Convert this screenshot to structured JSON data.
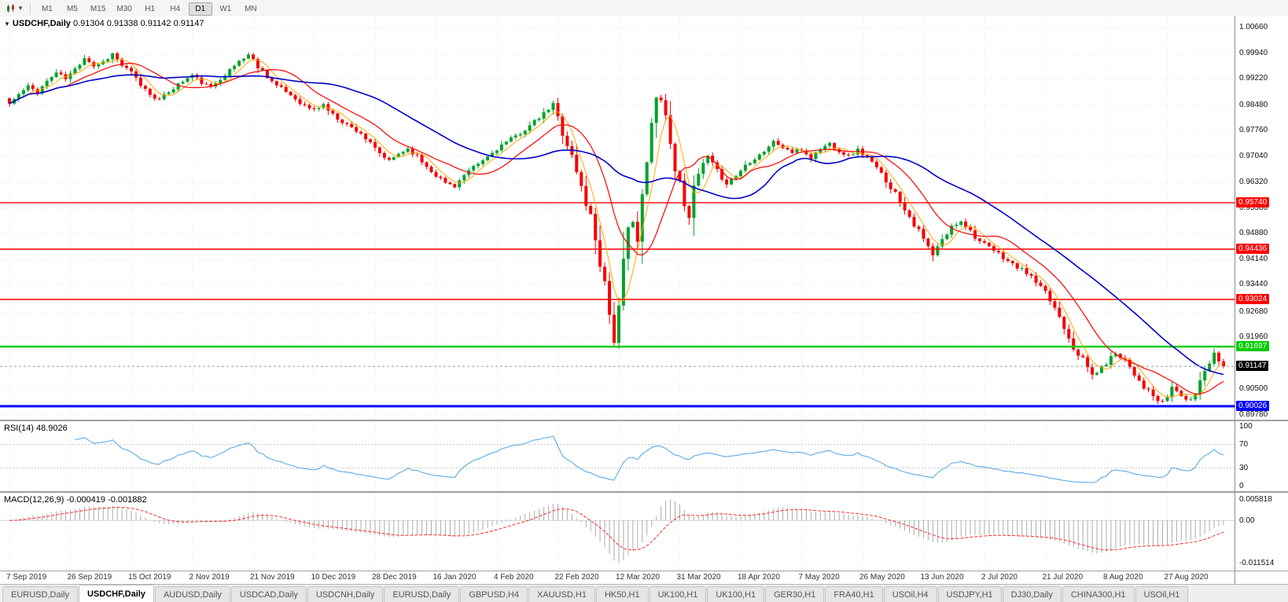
{
  "toolbar": {
    "timeframes": [
      "M1",
      "M5",
      "M15",
      "M30",
      "H1",
      "H4",
      "D1",
      "W1",
      "MN"
    ],
    "active": "D1"
  },
  "chart": {
    "title": "USDCHF,Daily",
    "ohlc": "0.91304 0.91338 0.91142 0.91147"
  },
  "rsi": {
    "title": "RSI(14)",
    "value": "48.9026"
  },
  "macd": {
    "title": "MACD(12,26,9)",
    "values": "-0.000419 -0.001882",
    "range_min": -0.011514,
    "range_max": 0.005818
  },
  "price_axis": {
    "labels": [
      "1.00660",
      "0.99940",
      "0.99220",
      "0.98480",
      "0.97760",
      "0.97040",
      "0.96320",
      "0.95580",
      "0.94880",
      "0.94140",
      "0.93440",
      "0.92680",
      "0.91960",
      "0.90500",
      "0.89780"
    ]
  },
  "chart_data": {
    "type": "candlestick",
    "symbol": "USDCHF",
    "timeframe": "Daily",
    "title": "USDCHF,Daily",
    "total_days": 260,
    "days_per_label": 13,
    "last_close": 0.91147,
    "x_labels": [
      "7 Sep 2019",
      "26 Sep 2019",
      "15 Oct 2019",
      "2 Nov 2019",
      "21 Nov 2019",
      "10 Dec 2019",
      "28 Dec 2019",
      "16 Jan 2020",
      "4 Feb 2020",
      "22 Feb 2020",
      "12 Mar 2020",
      "31 Mar 2020",
      "18 Apr 2020",
      "7 May 2020",
      "26 May 2020",
      "13 Jun 2020",
      "2 Jul 2020",
      "21 Jul 2020",
      "8 Aug 2020",
      "27 Aug 2020"
    ],
    "y_axis": {
      "min": 0.8978,
      "max": 1.0066
    },
    "price_anchors": [
      [
        0,
        0.9852
      ],
      [
        2,
        0.9878
      ],
      [
        4,
        0.99
      ],
      [
        6,
        0.9886
      ],
      [
        8,
        0.9915
      ],
      [
        10,
        0.994
      ],
      [
        12,
        0.9922
      ],
      [
        14,
        0.9948
      ],
      [
        16,
        0.9985
      ],
      [
        18,
        0.9958
      ],
      [
        20,
        0.997
      ],
      [
        22,
        0.9992
      ],
      [
        24,
        0.996
      ],
      [
        26,
        0.9938
      ],
      [
        28,
        0.9905
      ],
      [
        30,
        0.988
      ],
      [
        32,
        0.9862
      ],
      [
        34,
        0.9886
      ],
      [
        36,
        0.9906
      ],
      [
        39,
        0.9932
      ],
      [
        41,
        0.9912
      ],
      [
        43,
        0.9896
      ],
      [
        45,
        0.9925
      ],
      [
        47,
        0.9945
      ],
      [
        49,
        0.9972
      ],
      [
        51,
        0.999
      ],
      [
        53,
        0.9958
      ],
      [
        55,
        0.993
      ],
      [
        57,
        0.9902
      ],
      [
        59,
        0.9886
      ],
      [
        61,
        0.9866
      ],
      [
        63,
        0.9846
      ],
      [
        65,
        0.9834
      ],
      [
        67,
        0.985
      ],
      [
        69,
        0.982
      ],
      [
        71,
        0.9802
      ],
      [
        73,
        0.9785
      ],
      [
        75,
        0.977
      ],
      [
        77,
        0.9738
      ],
      [
        79,
        0.9712
      ],
      [
        81,
        0.969
      ],
      [
        83,
        0.9712
      ],
      [
        85,
        0.9726
      ],
      [
        87,
        0.9704
      ],
      [
        89,
        0.9676
      ],
      [
        91,
        0.9652
      ],
      [
        93,
        0.963
      ],
      [
        95,
        0.9622
      ],
      [
        97,
        0.965
      ],
      [
        99,
        0.9672
      ],
      [
        101,
        0.9692
      ],
      [
        103,
        0.9714
      ],
      [
        105,
        0.9736
      ],
      [
        107,
        0.9752
      ],
      [
        109,
        0.977
      ],
      [
        111,
        0.979
      ],
      [
        113,
        0.9812
      ],
      [
        115,
        0.9836
      ],
      [
        116,
        0.9846
      ],
      [
        117,
        0.9812
      ],
      [
        118,
        0.9776
      ],
      [
        119,
        0.974
      ],
      [
        120,
        0.9702
      ],
      [
        121,
        0.966
      ],
      [
        122,
        0.9616
      ],
      [
        123,
        0.9576
      ],
      [
        124,
        0.9532
      ],
      [
        125,
        0.9478
      ],
      [
        126,
        0.942
      ],
      [
        127,
        0.935
      ],
      [
        128,
        0.9268
      ],
      [
        129,
        0.92
      ],
      [
        130,
        0.9252
      ],
      [
        131,
        0.937
      ],
      [
        132,
        0.948
      ],
      [
        133,
        0.956
      ],
      [
        134,
        0.947
      ],
      [
        135,
        0.956
      ],
      [
        136,
        0.968
      ],
      [
        137,
        0.978
      ],
      [
        138,
        0.986
      ],
      [
        139,
        0.9896
      ],
      [
        140,
        0.982
      ],
      [
        141,
        0.974
      ],
      [
        142,
        0.968
      ],
      [
        143,
        0.962
      ],
      [
        144,
        0.958
      ],
      [
        145,
        0.955
      ],
      [
        146,
        0.96
      ],
      [
        147,
        0.965
      ],
      [
        148,
        0.968
      ],
      [
        149,
        0.97
      ],
      [
        151,
        0.966
      ],
      [
        153,
        0.963
      ],
      [
        155,
        0.965
      ],
      [
        157,
        0.968
      ],
      [
        159,
        0.97
      ],
      [
        161,
        0.972
      ],
      [
        163,
        0.9745
      ],
      [
        165,
        0.973
      ],
      [
        167,
        0.9715
      ],
      [
        169,
        0.9722
      ],
      [
        171,
        0.97
      ],
      [
        173,
        0.9726
      ],
      [
        175,
        0.974
      ],
      [
        177,
        0.972
      ],
      [
        179,
        0.9705
      ],
      [
        181,
        0.9722
      ],
      [
        183,
        0.97
      ],
      [
        185,
        0.967
      ],
      [
        187,
        0.9638
      ],
      [
        189,
        0.96
      ],
      [
        191,
        0.956
      ],
      [
        193,
        0.9515
      ],
      [
        195,
        0.947
      ],
      [
        197,
        0.9425
      ],
      [
        199,
        0.9468
      ],
      [
        201,
        0.9505
      ],
      [
        203,
        0.9525
      ],
      [
        205,
        0.9495
      ],
      [
        207,
        0.9465
      ],
      [
        209,
        0.9448
      ],
      [
        211,
        0.943
      ],
      [
        213,
        0.941
      ],
      [
        215,
        0.9392
      ],
      [
        217,
        0.9378
      ],
      [
        219,
        0.935
      ],
      [
        221,
        0.9318
      ],
      [
        223,
        0.928
      ],
      [
        225,
        0.923
      ],
      [
        227,
        0.9172
      ],
      [
        229,
        0.9132
      ],
      [
        231,
        0.909
      ],
      [
        233,
        0.9108
      ],
      [
        234,
        0.9126
      ],
      [
        236,
        0.9152
      ],
      [
        238,
        0.9134
      ],
      [
        240,
        0.9095
      ],
      [
        242,
        0.9058
      ],
      [
        244,
        0.903
      ],
      [
        246,
        0.9006
      ],
      [
        248,
        0.9056
      ],
      [
        250,
        0.9034
      ],
      [
        252,
        0.9008
      ],
      [
        254,
        0.9076
      ],
      [
        256,
        0.9132
      ],
      [
        257,
        0.9162
      ],
      [
        258,
        0.9124
      ],
      [
        259,
        0.91147
      ]
    ],
    "ma_lines": [
      {
        "period": 5,
        "color": "#FFA800",
        "width": 1
      },
      {
        "period": 13,
        "color": "#FF0000",
        "width": 1.2
      },
      {
        "period": 34,
        "color": "#0000C8",
        "width": 1.6
      }
    ],
    "hlines": [
      {
        "price": 0.9574,
        "label": "0.95740",
        "color": "#FF0000",
        "width": 1.4
      },
      {
        "price": 0.94436,
        "label": "0.94436",
        "color": "#FF0000",
        "width": 1.4
      },
      {
        "price": 0.93024,
        "label": "0.93024",
        "color": "#FF0000",
        "width": 1.4
      },
      {
        "price": 0.91697,
        "label": "0.91697",
        "color": "#00CC00",
        "width": 2.4
      },
      {
        "price": 0.90026,
        "label": "0.90026",
        "color": "#0000FF",
        "width": 3
      }
    ],
    "current_price": {
      "value": 0.91147,
      "label": "0.91147"
    },
    "rsi": {
      "period": 14,
      "levels": [
        70,
        30
      ],
      "axis_labels": [
        "100",
        "70",
        "30",
        "0"
      ]
    },
    "macd": {
      "fast": 12,
      "slow": 26,
      "signal": 9,
      "axis_labels": [
        "0.005818",
        "0.00",
        "-0.011514"
      ]
    }
  },
  "tabs": {
    "active_index": 1,
    "items": [
      "EURUSD,Daily",
      "USDCHF,Daily",
      "AUDUSD,Daily",
      "USDCAD,Daily",
      "USDCNH,Daily",
      "EURUSD,Daily",
      "GBPUSD,H4",
      "XAUUSD,H1",
      "HK50,H1",
      "UK100,H1",
      "UK100,H1",
      "GER30,H1",
      "FRA40,H1",
      "USOil,H4",
      "USDJPY,H1",
      "DJ30,Daily",
      "CHINA300,H1",
      "USOil,H1"
    ]
  },
  "colors": {
    "up": "#00A22B",
    "down": "#F40000",
    "grid": "#E8E8E8",
    "level_dotted": "#C8C8C8",
    "rsi": "#4FA2DE",
    "macd_hist": "#ABABAB",
    "macd_signal": "#FF2828",
    "current_line": "#9A9A9A"
  }
}
